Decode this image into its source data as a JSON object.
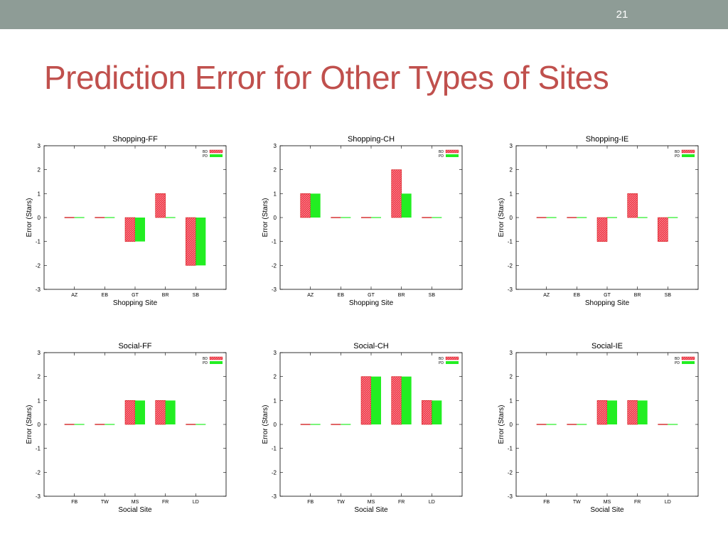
{
  "slide": {
    "number": "21",
    "title": "Prediction Error for Other Types of Sites"
  },
  "colors": {
    "topbar": "#8e9c96",
    "title": "#c0504d",
    "bd": "#ee3344",
    "pd": "#22ee22"
  },
  "chart_data": [
    {
      "type": "bar",
      "title": "Shopping-FF",
      "xlabel": "Shopping Site",
      "ylabel": "Error (Stars)",
      "ylim": [
        -3,
        3
      ],
      "yticks": [
        "3",
        "2",
        "1",
        "0",
        "-1",
        "-2",
        "-3"
      ],
      "categories": [
        "AZ",
        "EB",
        "GT",
        "BR",
        "SB"
      ],
      "legend_position": "top-right",
      "series": [
        {
          "name": "BD",
          "values": [
            0,
            0,
            -1,
            1,
            -2
          ]
        },
        {
          "name": "PD",
          "values": [
            0,
            0,
            -1,
            0,
            -2
          ]
        }
      ]
    },
    {
      "type": "bar",
      "title": "Shopping-CH",
      "xlabel": "Shopping Site",
      "ylabel": "Error (Stars)",
      "ylim": [
        -3,
        3
      ],
      "yticks": [
        "3",
        "2",
        "1",
        "0",
        "-1",
        "-2",
        "-3"
      ],
      "categories": [
        "AZ",
        "EB",
        "GT",
        "BR",
        "SB"
      ],
      "legend_position": "top-right",
      "series": [
        {
          "name": "BD",
          "values": [
            1,
            0,
            0,
            2,
            0
          ]
        },
        {
          "name": "PD",
          "values": [
            1,
            0,
            0,
            1,
            0
          ]
        }
      ]
    },
    {
      "type": "bar",
      "title": "Shopping-IE",
      "xlabel": "Shopping Site",
      "ylabel": "Error (Stars)",
      "ylim": [
        -3,
        3
      ],
      "yticks": [
        "3",
        "2",
        "1",
        "0",
        "-1",
        "-2",
        "-3"
      ],
      "categories": [
        "AZ",
        "EB",
        "GT",
        "BR",
        "SB"
      ],
      "legend_position": "top-right",
      "series": [
        {
          "name": "BD",
          "values": [
            0,
            0,
            -1,
            1,
            -1
          ]
        },
        {
          "name": "PD",
          "values": [
            0,
            0,
            0,
            0,
            0
          ]
        }
      ]
    },
    {
      "type": "bar",
      "title": "Social-FF",
      "xlabel": "Social Site",
      "ylabel": "Error (Stars)",
      "ylim": [
        -3,
        3
      ],
      "yticks": [
        "3",
        "2",
        "1",
        "0",
        "-1",
        "-2",
        "-3"
      ],
      "categories": [
        "FB",
        "TW",
        "MS",
        "FR",
        "LD"
      ],
      "legend_position": "top-right",
      "series": [
        {
          "name": "BD",
          "values": [
            0,
            0,
            1,
            1,
            0
          ]
        },
        {
          "name": "PD",
          "values": [
            0,
            0,
            1,
            1,
            0
          ]
        }
      ]
    },
    {
      "type": "bar",
      "title": "Social-CH",
      "xlabel": "Social Site",
      "ylabel": "Error (Stars)",
      "ylim": [
        -3,
        3
      ],
      "yticks": [
        "3",
        "2",
        "1",
        "0",
        "-1",
        "-2",
        "-3"
      ],
      "categories": [
        "FB",
        "TW",
        "MS",
        "FR",
        "LD"
      ],
      "legend_position": "top-right",
      "series": [
        {
          "name": "BD",
          "values": [
            0,
            0,
            2,
            2,
            1
          ]
        },
        {
          "name": "PD",
          "values": [
            0,
            0,
            2,
            2,
            1
          ]
        }
      ]
    },
    {
      "type": "bar",
      "title": "Social-IE",
      "xlabel": "Social Site",
      "ylabel": "Error (Stars)",
      "ylim": [
        -3,
        3
      ],
      "yticks": [
        "3",
        "2",
        "1",
        "0",
        "-1",
        "-2",
        "-3"
      ],
      "categories": [
        "FB",
        "TW",
        "MS",
        "FR",
        "LD"
      ],
      "legend_position": "top-right",
      "series": [
        {
          "name": "BD",
          "values": [
            0,
            0,
            1,
            1,
            0
          ]
        },
        {
          "name": "PD",
          "values": [
            0,
            0,
            1,
            1,
            0
          ]
        }
      ]
    }
  ]
}
